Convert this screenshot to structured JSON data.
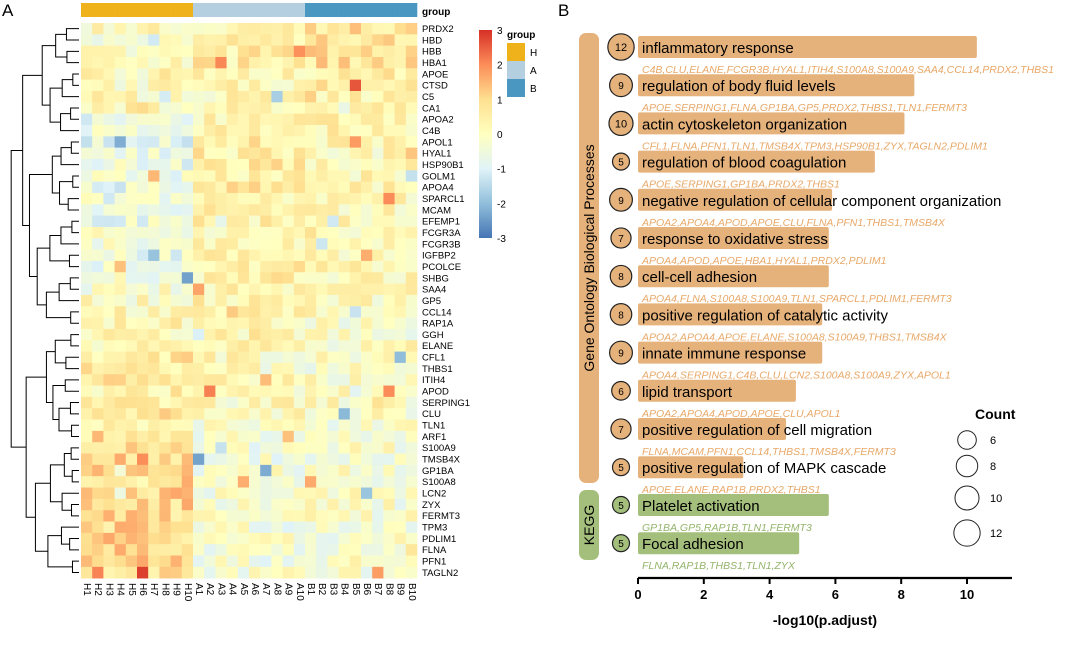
{
  "panels": {
    "a": "A",
    "b": "B"
  },
  "chart_data": [
    {
      "type": "heatmap",
      "panel": "A",
      "group_header": "group",
      "samples": [
        "H1",
        "H2",
        "H3",
        "H4",
        "H5",
        "H6",
        "H7",
        "H8",
        "H9",
        "H10",
        "A1",
        "A2",
        "A3",
        "A4",
        "A5",
        "A6",
        "A7",
        "A8",
        "A9",
        "A10",
        "B1",
        "B2",
        "B3",
        "B4",
        "B5",
        "B6",
        "B7",
        "B8",
        "B9",
        "B10"
      ],
      "groups": [
        {
          "name": "H",
          "color": "#f0b21a"
        },
        {
          "name": "A",
          "color": "#b4d0e0"
        },
        {
          "name": "B",
          "color": "#4a97c2"
        }
      ],
      "legend_title": "group",
      "colorbar": {
        "min": -3,
        "max": 3,
        "ticks": [
          "3",
          "2",
          "1",
          "0",
          "-1",
          "-2",
          "-3"
        ]
      },
      "genes": [
        "PRDX2",
        "HBD",
        "HBB",
        "HBA1",
        "APOE",
        "CTSD",
        "C5",
        "CA1",
        "APOA2",
        "C4B",
        "APOL1",
        "HYAL1",
        "HSP90B1",
        "GOLM1",
        "APOA4",
        "SPARCL1",
        "MCAM",
        "EFEMP1",
        "FCGR3A",
        "FCGR3B",
        "IGFBP2",
        "PCOLCE",
        "SHBG",
        "SAA4",
        "GP5",
        "CCL14",
        "RAP1A",
        "GGH",
        "ELANE",
        "CFL1",
        "THBS1",
        "ITIH4",
        "APOD",
        "SERPING1",
        "CLU",
        "TLN1",
        "ARF1",
        "S100A9",
        "TMSB4X",
        "GP1BA",
        "S100A8",
        "LCN2",
        "ZYX",
        "FERMT3",
        "TPM3",
        "PDLIM1",
        "FLNA",
        "PFN1",
        "TAGLN2"
      ],
      "group_means_H_A_B": [
        [
          0.2,
          0.3,
          0.8
        ],
        [
          -0.2,
          0.6,
          0.9
        ],
        [
          0,
          0.6,
          0.8
        ],
        [
          0.1,
          0.5,
          0.8
        ],
        [
          0.2,
          0.2,
          0.5
        ],
        [
          0,
          0.2,
          0.5
        ],
        [
          0.1,
          0.2,
          0.5
        ],
        [
          0,
          0.3,
          0.5
        ],
        [
          -0.8,
          0.4,
          0.3
        ],
        [
          -0.6,
          0.5,
          0.3
        ],
        [
          -0.7,
          0.6,
          0.2
        ],
        [
          -0.7,
          0.5,
          0.2
        ],
        [
          -0.6,
          0.5,
          0.1
        ],
        [
          -0.5,
          0.5,
          0.2
        ],
        [
          -0.6,
          0.7,
          0.3
        ],
        [
          -0.5,
          0.5,
          0.3
        ],
        [
          -0.5,
          0.4,
          0.2
        ],
        [
          -0.6,
          0.4,
          0.3
        ],
        [
          -0.3,
          0.2,
          0.3
        ],
        [
          -0.4,
          0.2,
          0.3
        ],
        [
          -0.6,
          0.3,
          0.2
        ],
        [
          -0.5,
          0.4,
          0.2
        ],
        [
          -0.3,
          0.4,
          0.2
        ],
        [
          -0.2,
          0.4,
          0.1
        ],
        [
          0,
          0.3,
          0
        ],
        [
          0.2,
          0.4,
          0
        ],
        [
          0.3,
          0.2,
          -0.1
        ],
        [
          0.3,
          0.3,
          -0.1
        ],
        [
          0.3,
          0.2,
          0
        ],
        [
          0.6,
          0.1,
          -0.1
        ],
        [
          0.7,
          0,
          -0.2
        ],
        [
          0.6,
          0.1,
          -0.1
        ],
        [
          0.4,
          0.2,
          0
        ],
        [
          0.5,
          0.1,
          0
        ],
        [
          0.6,
          0,
          -0.1
        ],
        [
          0.6,
          -0.2,
          -0.2
        ],
        [
          0.8,
          -0.3,
          -0.2
        ],
        [
          1.1,
          -0.3,
          -0.2
        ],
        [
          1,
          -0.3,
          -0.2
        ],
        [
          1,
          -0.3,
          -0.2
        ],
        [
          1,
          -0.3,
          -0.2
        ],
        [
          1,
          -0.3,
          -0.2
        ],
        [
          1,
          -0.3,
          -0.2
        ],
        [
          1,
          -0.3,
          -0.2
        ],
        [
          1,
          -0.3,
          -0.2
        ],
        [
          1,
          -0.3,
          -0.2
        ],
        [
          1,
          -0.3,
          -0.2
        ],
        [
          1.1,
          -0.3,
          -0.2
        ],
        [
          1,
          -0.3,
          -0.2
        ]
      ]
    },
    {
      "type": "bar",
      "panel": "B",
      "orientation": "horizontal",
      "xlabel": "-log10(p.adjust)",
      "xlim": [
        0,
        11.3
      ],
      "xticks": [
        "0",
        "2",
        "4",
        "6",
        "8",
        "10"
      ],
      "categories_label_go": "Gene Ontology Biological Processes",
      "categories_label_kegg": "KEGG",
      "size_legend": {
        "title": "Count",
        "values": [
          "6",
          "8",
          "10",
          "12"
        ]
      },
      "colors": {
        "go_bar": "#e6b27c",
        "go_text": "#e8a868",
        "kegg_bar": "#a4bf7c",
        "kegg_text": "#93b46a"
      },
      "terms": [
        {
          "category": "GO",
          "label": "inflammatory response",
          "count": 12,
          "value": 10.3,
          "genes": "C4B,CLU,ELANE,FCGR3B,HYAL1,ITIH4,S100A8,S100A9,SAA4,CCL14,PRDX2,THBS1"
        },
        {
          "category": "GO",
          "label": "regulation of body fluid levels",
          "count": 9,
          "value": 8.4,
          "genes": "APOE,SERPING1,FLNA,GP1BA,GP5,PRDX2,THBS1,TLN1,FERMT3"
        },
        {
          "category": "GO",
          "label": "actin cytoskeleton organization",
          "count": 10,
          "value": 8.1,
          "genes": "CFL1,FLNA,PFN1,TLN1,TMSB4X,TPM3,HSP90B1,ZYX,TAGLN2,PDLIM1"
        },
        {
          "category": "GO",
          "label": "regulation of blood coagulation",
          "count": 5,
          "value": 7.2,
          "genes": "APOE,SERPING1,GP1BA,PRDX2,THBS1"
        },
        {
          "category": "GO",
          "label": "negative regulation of cellular component organization",
          "count": 9,
          "value": 5.9,
          "genes": "APOA2,APOA4,APOD,APOE,CLU,FLNA,PFN1,THBS1,TMSB4X"
        },
        {
          "category": "GO",
          "label": "response to oxidative stress",
          "count": 7,
          "value": 5.8,
          "genes": "APOA4,APOD,APOE,HBA1,HYAL1,PRDX2,PDLIM1"
        },
        {
          "category": "GO",
          "label": "cell-cell adhesion",
          "count": 8,
          "value": 5.8,
          "genes": "APOA4,FLNA,S100A8,S100A9,TLN1,SPARCL1,PDLIM1,FERMT3"
        },
        {
          "category": "GO",
          "label": "positive regulation of catalytic activity",
          "count": 8,
          "value": 5.6,
          "genes": "APOA2,APOA4,APOE,ELANE,S100A8,S100A9,THBS1,TMSB4X"
        },
        {
          "category": "GO",
          "label": "innate immune response",
          "count": 9,
          "value": 5.6,
          "genes": "APOA4,SERPING1,C4B,CLU,LCN2,S100A8,S100A9,ZYX,APOL1"
        },
        {
          "category": "GO",
          "label": "lipid transport",
          "count": 6,
          "value": 4.8,
          "genes": "APOA2,APOA4,APOD,APOE,CLU,APOL1"
        },
        {
          "category": "GO",
          "label": "positive regulation of cell migration",
          "count": 7,
          "value": 4.5,
          "genes": "FLNA,MCAM,PFN1,CCL14,THBS1,TMSB4X,FERMT3"
        },
        {
          "category": "GO",
          "label": "positive regulation of MAPK cascade",
          "count": 5,
          "value": 3.2,
          "genes": "APOE,ELANE,RAP1B,PRDX2,THBS1"
        },
        {
          "category": "KEGG",
          "label": "Platelet activation",
          "count": 5,
          "value": 5.8,
          "genes": "GP1BA,GP5,RAP1B,TLN1,FERMT3"
        },
        {
          "category": "KEGG",
          "label": "Focal adhesion",
          "count": 5,
          "value": 4.9,
          "genes": "FLNA,RAP1B,THBS1,TLN1,ZYX"
        }
      ]
    }
  ]
}
